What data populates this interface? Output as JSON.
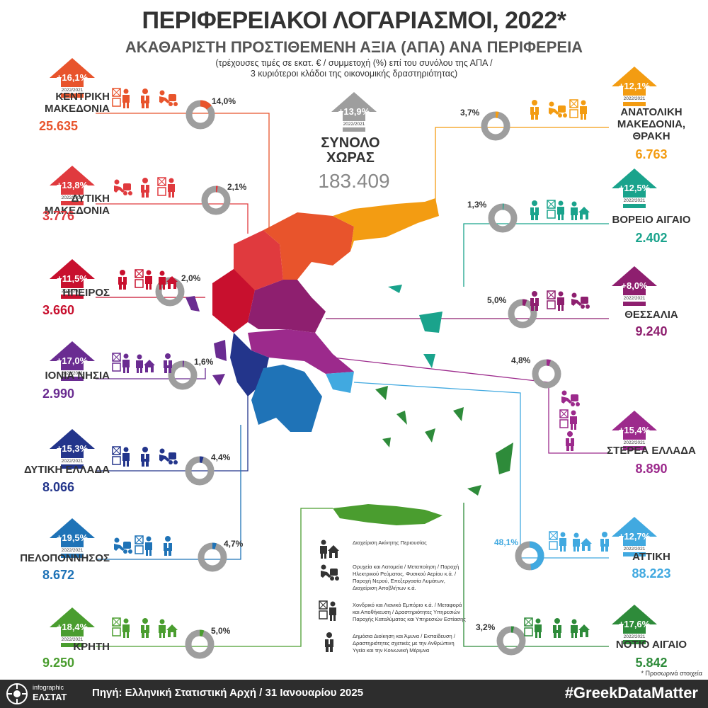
{
  "title": "ΠΕΡΙΦΕΡΕΙΑΚΟΙ ΛΟΓΑΡΙΑΣΜΟΙ, 2022*",
  "subtitle": "ΑΚΑΘΑΡΙΣΤΗ ΠΡΟΣΤΙΘΕΜΕΝΗ ΑΞΙΑ (ΑΠΑ) ΑΝΑ ΠΕΡΙΦΕΡΕΙΑ",
  "note_line1": "(τρέχουσες τιμές σε εκατ. € / συμμετοχή (%) επί του συνόλου της ΑΠΑ /",
  "note_line2": "3 κυριότεροι κλάδοι της οικονομικής δραστηριότητας)",
  "period_label": "2022/2021",
  "total": {
    "change": "+13,9%",
    "name_line1": "ΣΥΝΟΛΟ",
    "name_line2": "ΧΩΡΑΣ",
    "value": "183.409",
    "color": "#9e9e9e"
  },
  "regions": [
    {
      "id": "kentriki-makedonia",
      "name_line1": "ΚΕΝΤΡΙΚΗ",
      "name_line2": "ΜΑΚΕΔΟΝΙΑ",
      "value": "25.635",
      "change": "+16,1%",
      "share_label": "14,0%",
      "share": 14.0,
      "color": "#e8542c",
      "icons": [
        "trade",
        "public",
        "industry"
      ]
    },
    {
      "id": "dytiki-makedonia",
      "name_line1": "ΔΥΤΙΚΗ ΜΑΚΕΔΟΝΙΑ",
      "name_line2": "",
      "value": "3.776",
      "change": "+13,8%",
      "share_label": "2,1%",
      "share": 2.1,
      "color": "#e03a3e",
      "icons": [
        "industry",
        "public",
        "trade"
      ]
    },
    {
      "id": "ipeiros",
      "name_line1": "ΗΠΕΙΡΟΣ",
      "name_line2": "",
      "value": "3.660",
      "change": "+11,5%",
      "share_label": "2,0%",
      "share": 2.0,
      "color": "#c8102e",
      "icons": [
        "public",
        "trade",
        "realestate"
      ]
    },
    {
      "id": "ionia-nisia",
      "name_line1": "ΙΟΝΙΑ ΝΗΣΙΑ",
      "name_line2": "",
      "value": "2.990",
      "change": "+17,0%",
      "share_label": "1,6%",
      "share": 1.6,
      "color": "#6a2c91",
      "icons": [
        "trade",
        "realestate",
        "public"
      ]
    },
    {
      "id": "dytiki-ellada",
      "name_line1": "ΔΥΤΙΚΗ ΕΛΛΑΔΑ",
      "name_line2": "",
      "value": "8.066",
      "change": "+15,3%",
      "share_label": "4,4%",
      "share": 4.4,
      "color": "#23358b",
      "icons": [
        "trade",
        "public",
        "industry"
      ]
    },
    {
      "id": "peloponnisos",
      "name_line1": "ΠΕΛΟΠΟΝΝΗΣΟΣ",
      "name_line2": "",
      "value": "8.672",
      "change": "+19,5%",
      "share_label": "4,7%",
      "share": 4.7,
      "color": "#1f73b7",
      "icons": [
        "industry",
        "trade",
        "public"
      ]
    },
    {
      "id": "kriti",
      "name_line1": "ΚΡΗΤΗ",
      "name_line2": "",
      "value": "9.250",
      "change": "+18,4%",
      "share_label": "5,0%",
      "share": 5.0,
      "color": "#4a9d2f",
      "icons": [
        "trade",
        "public",
        "realestate"
      ]
    },
    {
      "id": "anatoliki-makedonia-thraki",
      "name_line1": "ΑΝΑΤΟΛΙΚΗ",
      "name_line2": "ΜΑΚΕΔΟΝΙΑ,",
      "name_line3": "ΘΡΑΚΗ",
      "value": "6.763",
      "change": "+12,1%",
      "share_label": "3,7%",
      "share": 3.7,
      "color": "#f39c12",
      "icons": [
        "public",
        "industry",
        "trade"
      ]
    },
    {
      "id": "voreio-aigaio",
      "name_line1": "ΒΟΡΕΙΟ ΑΙΓΑΙΟ",
      "name_line2": "",
      "value": "2.402",
      "change": "+12,5%",
      "share_label": "1,3%",
      "share": 1.3,
      "color": "#1aa38c",
      "icons": [
        "public",
        "trade",
        "realestate"
      ]
    },
    {
      "id": "thessalia",
      "name_line1": "ΘΕΣΣΑΛΙΑ",
      "name_line2": "",
      "value": "9.240",
      "change": "+8,0%",
      "share_label": "5,0%",
      "share": 5.0,
      "color": "#8e1f6f",
      "icons": [
        "public",
        "trade",
        "industry"
      ]
    },
    {
      "id": "sterea-ellada",
      "name_line1": "ΣΤΕΡΕΑ ΕΛΛΑΔΑ",
      "name_line2": "",
      "value": "8.890",
      "change": "+15,4%",
      "share_label": "4,8%",
      "share": 4.8,
      "color": "#9c2a8c",
      "icons": [
        "industry",
        "trade",
        "public"
      ]
    },
    {
      "id": "attiki",
      "name_line1": "ΑΤΤΙΚΗ",
      "name_line2": "",
      "value": "88.223",
      "change": "+12,7%",
      "share_label": "48,1%",
      "share": 48.1,
      "color": "#41a9e0",
      "icons": [
        "trade",
        "realestate",
        "public"
      ]
    },
    {
      "id": "notio-aigaio",
      "name_line1": "ΝΟΤΙΟ ΑΙΓΑΙΟ",
      "name_line2": "",
      "value": "5.842",
      "change": "+17,6%",
      "share_label": "3,2%",
      "share": 3.2,
      "color": "#2e8b3a",
      "icons": [
        "trade",
        "public",
        "realestate"
      ]
    }
  ],
  "legend": [
    {
      "icon": "realestate",
      "text": "Διαχείριση Ακίνητης Περιουσίας"
    },
    {
      "icon": "industry",
      "text": "Ορυχεία και Λατομεία / Μεταποίηση / Παροχή Ηλεκτρικού Ρεύματος, Φυσικού Αερίου κ.ά. / Παροχή Νερού, Επεξεργασία Λυμάτων, Διαχείριση Αποβλήτων κ.ά."
    },
    {
      "icon": "trade",
      "text": "Χονδρικό και Λιανικό Εμπόριο κ.ά. / Μεταφορά και Αποθήκευση / Δραστηριότητες Υπηρεσιών Παροχής Καταλύματος και Υπηρεσιών Εστίασης"
    },
    {
      "icon": "public",
      "text": "Δημόσια Διοίκηση και Άμυνα / Εκπαίδευση / Δραστηριότητες σχετικές με την Ανθρώπινη Υγεία και την Κοινωνική Μέριμνα"
    }
  ],
  "provisional_note": "* Προσωρινά στοιχεία",
  "footer": {
    "brand_top": "infographic",
    "brand_bottom": "ΕΛΣΤΑΤ",
    "source": "Πηγή: Ελληνική Στατιστική Αρχή  / 31 Ιανουαρίου 2025",
    "hashtag": "#GreekDataMatter"
  }
}
